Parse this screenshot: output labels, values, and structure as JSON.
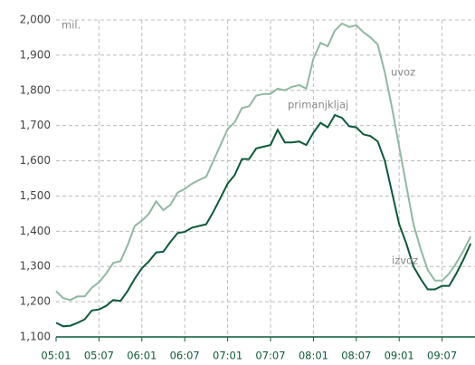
{
  "chart_data": {
    "type": "line",
    "annotations": [
      "mil.",
      "uvoz",
      "primanjkljaj",
      "izvoz"
    ],
    "categories": [
      "05:01",
      null,
      null,
      null,
      null,
      null,
      "05:07",
      null,
      null,
      null,
      null,
      null,
      "06:01",
      null,
      null,
      null,
      null,
      null,
      "06:07",
      null,
      null,
      null,
      null,
      null,
      "07:01",
      null,
      null,
      null,
      null,
      null,
      "07:07",
      null,
      null,
      null,
      null,
      null,
      "08:01",
      null,
      null,
      null,
      null,
      null,
      "08:07",
      null,
      null,
      null,
      null,
      null,
      "09:01",
      null,
      null,
      null,
      null,
      null,
      "09:07",
      null,
      null,
      null,
      null
    ],
    "series": [
      {
        "name": "uvoz",
        "color": "#8fb8a2",
        "values": [
          1230,
          1210,
          1205,
          1215,
          1215,
          1240,
          1255,
          1280,
          1310,
          1315,
          1360,
          1415,
          1430,
          1450,
          1485,
          1460,
          1475,
          1510,
          1520,
          1535,
          1545,
          1555,
          1600,
          1645,
          1690,
          1710,
          1750,
          1755,
          1785,
          1790,
          1790,
          1805,
          1800,
          1810,
          1815,
          1805,
          1890,
          1935,
          1925,
          1970,
          1990,
          1980,
          1985,
          1965,
          1950,
          1930,
          1850,
          1750,
          1640,
          1530,
          1420,
          1350,
          1290,
          1260,
          1260,
          1280,
          1310,
          1345,
          1385
        ]
      },
      {
        "name": "izvoz",
        "color": "#0b5a38",
        "values": [
          1140,
          1130,
          1132,
          1140,
          1150,
          1175,
          1178,
          1188,
          1205,
          1202,
          1230,
          1265,
          1295,
          1315,
          1340,
          1342,
          1370,
          1395,
          1398,
          1410,
          1415,
          1420,
          1455,
          1495,
          1535,
          1560,
          1605,
          1605,
          1635,
          1640,
          1645,
          1688,
          1652,
          1652,
          1655,
          1645,
          1680,
          1708,
          1695,
          1730,
          1722,
          1698,
          1695,
          1675,
          1670,
          1655,
          1600,
          1510,
          1420,
          1365,
          1300,
          1265,
          1235,
          1235,
          1245,
          1245,
          1280,
          1320,
          1365
        ]
      }
    ],
    "ylim": [
      1100,
      2000
    ],
    "yticks": [
      {
        "value": 1100,
        "label": "1,100"
      },
      {
        "value": 1200,
        "label": "1,200"
      },
      {
        "value": 1300,
        "label": "1,300"
      },
      {
        "value": 1400,
        "label": "1,400"
      },
      {
        "value": 1500,
        "label": "1,500"
      },
      {
        "value": 1600,
        "label": "1,600"
      },
      {
        "value": 1700,
        "label": "1,700"
      },
      {
        "value": 1800,
        "label": "1,800"
      },
      {
        "value": 1900,
        "label": "1,900"
      },
      {
        "value": 2000,
        "label": "2,000"
      }
    ],
    "grid": true
  }
}
